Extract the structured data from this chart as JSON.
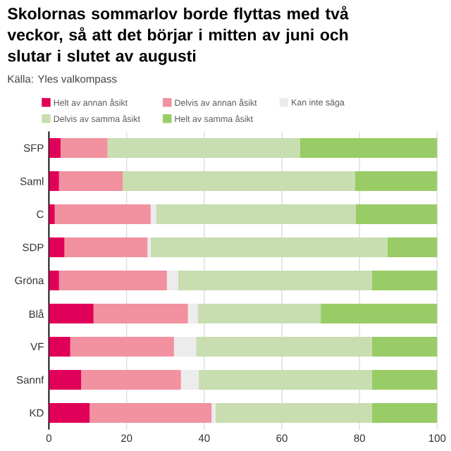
{
  "chart_data": {
    "type": "bar",
    "orientation": "horizontal",
    "stacked": true,
    "title": "Skolornas sommarlov borde flyttas med två veckor, så att det börjar i mitten av juni och slutar i slutet av augusti",
    "subtitle": "Källa: Yles valkompass",
    "categories": [
      "SFP",
      "Saml",
      "C",
      "SDP",
      "Gröna",
      "Blå",
      "VF",
      "Sannf",
      "KD"
    ],
    "series": [
      {
        "name": "Helt av annan åsikt",
        "color": "#e0005a",
        "values": [
          3.0,
          2.6,
          1.5,
          4.0,
          2.6,
          11.5,
          5.5,
          8.3,
          10.5
        ]
      },
      {
        "name": "Delvis av annan åsikt",
        "color": "#f291a0",
        "values": [
          12.1,
          16.4,
          24.7,
          21.4,
          27.8,
          24.3,
          26.7,
          25.7,
          31.4
        ]
      },
      {
        "name": "Kan inte säga",
        "color": "#ececec",
        "values": [
          0,
          0,
          1.4,
          0.8,
          2.9,
          2.5,
          5.7,
          4.6,
          1.0
        ]
      },
      {
        "name": "Delvis av samma åsikt",
        "color": "#c8ddb0",
        "values": [
          49.6,
          59.8,
          51.4,
          61.0,
          49.9,
          31.7,
          45.3,
          44.6,
          40.3
        ]
      },
      {
        "name": "Helt av samma åsikt",
        "color": "#99cc66",
        "values": [
          35.3,
          21.2,
          21.0,
          12.8,
          16.8,
          30.0,
          16.8,
          16.8,
          16.8
        ]
      }
    ],
    "xlim": [
      0,
      100
    ],
    "xticks": [
      0,
      20,
      40,
      60,
      80,
      100
    ],
    "grid": "x",
    "legend": "top"
  }
}
